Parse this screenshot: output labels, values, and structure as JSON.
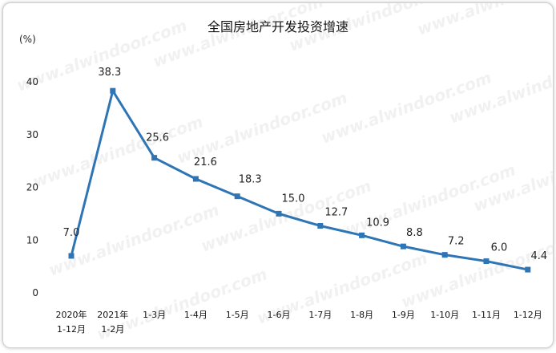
{
  "chart_data": {
    "type": "line",
    "title": "全国房地产开发投资增速",
    "y_unit": "(%)",
    "xlabel": "",
    "ylabel": "",
    "ylim": [
      0,
      40
    ],
    "yticks": [
      "0",
      "10",
      "20",
      "30",
      "40"
    ],
    "grid": false,
    "categories": [
      [
        "2020年",
        "1-12月"
      ],
      [
        "2021年",
        "1-2月"
      ],
      [
        "1-3月"
      ],
      [
        "1-4月"
      ],
      [
        "1-5月"
      ],
      [
        "1-6月"
      ],
      [
        "1-7月"
      ],
      [
        "1-8月"
      ],
      [
        "1-9月"
      ],
      [
        "1-10月"
      ],
      [
        "1-11月"
      ],
      [
        "1-12月"
      ]
    ],
    "series": [
      {
        "values": [
          7.0,
          38.3,
          25.6,
          21.6,
          18.3,
          15.0,
          12.7,
          10.9,
          8.8,
          7.2,
          6.0,
          4.4
        ],
        "labels": [
          "7.0",
          "38.3",
          "25.6",
          "21.6",
          "18.3",
          "15.0",
          "12.7",
          "10.9",
          "8.8",
          "7.2",
          "6.0",
          "4.4"
        ],
        "color": "#2e75b6"
      }
    ],
    "watermark": "www.alwindoor.com"
  }
}
